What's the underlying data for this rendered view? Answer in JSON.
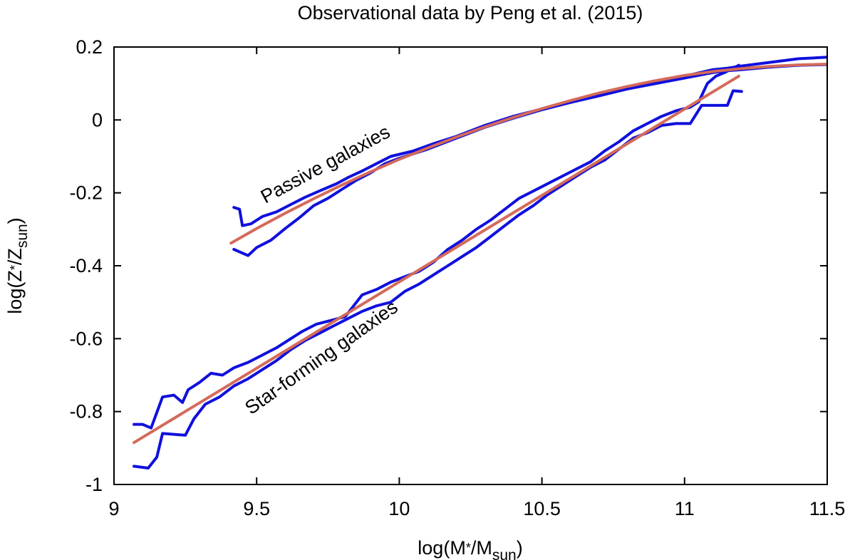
{
  "chart_data": {
    "type": "line",
    "title": "Observational data by Peng et al. (2015)",
    "xlabel": {
      "main": "log(M",
      "star": "*",
      "mid": "/M",
      "sub": "sun",
      "end": ")"
    },
    "ylabel": {
      "main": "log(Z",
      "star": "*",
      "mid": "/Z",
      "sub": "sun",
      "end": ")"
    },
    "xlim": [
      9,
      11.5
    ],
    "ylim": [
      -1,
      0.2
    ],
    "x_ticks": [
      9,
      9.5,
      10,
      10.5,
      11,
      11.5
    ],
    "x_tick_labels": [
      "9",
      "9.5",
      "10",
      "10.5",
      "11",
      "11.5"
    ],
    "y_ticks": [
      -1,
      -0.8,
      -0.6,
      -0.4,
      -0.2,
      0,
      0.2
    ],
    "y_tick_labels": [
      "-1",
      "-0.8",
      "-0.6",
      "-0.4",
      "-0.2",
      "0",
      "0.2"
    ],
    "grid": false,
    "colors": {
      "data": "#1010dd",
      "fit": "#d46a5a",
      "axis": "#000000"
    },
    "annotations": [
      {
        "text": "Passive galaxies",
        "x": 9.53,
        "y": -0.23,
        "angle_data_slope": 0.42
      },
      {
        "text": "Star-forming galaxies",
        "x": 9.48,
        "y": -0.81,
        "angle_data_slope": 0.555
      }
    ],
    "series": [
      {
        "role": "passive-upper",
        "style": "data",
        "x": [
          9.42,
          9.44,
          9.45,
          9.48,
          9.52,
          9.57,
          9.62,
          9.67,
          9.72,
          9.78,
          9.82,
          9.87,
          9.92,
          9.97,
          10.05,
          10.12,
          10.2,
          10.3,
          10.4,
          10.5,
          10.6,
          10.7,
          10.8,
          10.9,
          11.0,
          11.1,
          11.15,
          11.2,
          11.3,
          11.4,
          11.5
        ],
        "y": [
          -0.24,
          -0.245,
          -0.29,
          -0.285,
          -0.265,
          -0.252,
          -0.232,
          -0.212,
          -0.195,
          -0.175,
          -0.158,
          -0.14,
          -0.12,
          -0.1,
          -0.085,
          -0.065,
          -0.045,
          -0.015,
          0.01,
          0.03,
          0.05,
          0.07,
          0.09,
          0.105,
          0.12,
          0.138,
          0.142,
          0.148,
          0.158,
          0.168,
          0.172
        ]
      },
      {
        "role": "passive-lower",
        "style": "data",
        "x": [
          9.42,
          9.47,
          9.5,
          9.55,
          9.6,
          9.65,
          9.7,
          9.75,
          9.8,
          9.85,
          9.9,
          9.95,
          10.0,
          10.1,
          10.2,
          10.3,
          10.4,
          10.5,
          10.6,
          10.7,
          10.8,
          10.9,
          11.0,
          11.1,
          11.15,
          11.2,
          11.3,
          11.4,
          11.5
        ],
        "y": [
          -0.355,
          -0.372,
          -0.35,
          -0.33,
          -0.298,
          -0.268,
          -0.235,
          -0.215,
          -0.19,
          -0.165,
          -0.145,
          -0.12,
          -0.105,
          -0.08,
          -0.05,
          -0.02,
          0.005,
          0.028,
          0.048,
          0.066,
          0.085,
          0.1,
          0.115,
          0.13,
          0.135,
          0.138,
          0.145,
          0.15,
          0.152
        ]
      },
      {
        "role": "star-forming-upper",
        "style": "data",
        "x": [
          9.07,
          9.1,
          9.13,
          9.17,
          9.21,
          9.24,
          9.26,
          9.3,
          9.34,
          9.38,
          9.42,
          9.47,
          9.52,
          9.57,
          9.62,
          9.66,
          9.71,
          9.76,
          9.81,
          9.84,
          9.87,
          9.92,
          9.97,
          10.02,
          10.07,
          10.12,
          10.17,
          10.22,
          10.27,
          10.32,
          10.37,
          10.42,
          10.47,
          10.52,
          10.57,
          10.62,
          10.67,
          10.72,
          10.77,
          10.82,
          10.87,
          10.92,
          10.97,
          11.02,
          11.05,
          11.08,
          11.11,
          11.14,
          11.19
        ],
        "y": [
          -0.835,
          -0.835,
          -0.845,
          -0.76,
          -0.755,
          -0.775,
          -0.74,
          -0.72,
          -0.695,
          -0.7,
          -0.68,
          -0.665,
          -0.645,
          -0.625,
          -0.6,
          -0.58,
          -0.56,
          -0.55,
          -0.54,
          -0.51,
          -0.48,
          -0.465,
          -0.445,
          -0.43,
          -0.415,
          -0.39,
          -0.355,
          -0.33,
          -0.3,
          -0.275,
          -0.245,
          -0.215,
          -0.195,
          -0.175,
          -0.155,
          -0.135,
          -0.115,
          -0.085,
          -0.06,
          -0.03,
          -0.01,
          0.01,
          0.025,
          0.035,
          0.05,
          0.1,
          0.12,
          0.13,
          0.15
        ]
      },
      {
        "role": "star-forming-lower",
        "style": "data",
        "x": [
          9.07,
          9.12,
          9.15,
          9.17,
          9.25,
          9.28,
          9.32,
          9.37,
          9.42,
          9.47,
          9.52,
          9.57,
          9.62,
          9.67,
          9.72,
          9.77,
          9.82,
          9.87,
          9.92,
          9.97,
          10.02,
          10.07,
          10.12,
          10.17,
          10.22,
          10.27,
          10.32,
          10.37,
          10.42,
          10.47,
          10.52,
          10.57,
          10.62,
          10.67,
          10.72,
          10.77,
          10.82,
          10.87,
          10.92,
          10.97,
          11.02,
          11.06,
          11.1,
          11.12,
          11.15,
          11.17,
          11.2
        ],
        "y": [
          -0.95,
          -0.955,
          -0.925,
          -0.86,
          -0.865,
          -0.82,
          -0.78,
          -0.76,
          -0.73,
          -0.71,
          -0.685,
          -0.66,
          -0.63,
          -0.605,
          -0.585,
          -0.565,
          -0.545,
          -0.525,
          -0.51,
          -0.5,
          -0.47,
          -0.45,
          -0.425,
          -0.4,
          -0.375,
          -0.35,
          -0.32,
          -0.29,
          -0.26,
          -0.235,
          -0.205,
          -0.18,
          -0.155,
          -0.13,
          -0.11,
          -0.08,
          -0.05,
          -0.035,
          -0.015,
          -0.01,
          -0.01,
          0.04,
          0.04,
          0.04,
          0.04,
          0.08,
          0.078
        ]
      },
      {
        "role": "passive-fit",
        "style": "fit",
        "x": [
          9.41,
          9.5,
          9.6,
          9.7,
          9.8,
          9.9,
          10.0,
          10.1,
          10.2,
          10.3,
          10.4,
          10.5,
          10.6,
          10.7,
          10.8,
          10.9,
          11.0,
          11.1,
          11.2,
          11.3,
          11.4,
          11.5
        ],
        "y": [
          -0.338,
          -0.298,
          -0.256,
          -0.216,
          -0.178,
          -0.142,
          -0.108,
          -0.077,
          -0.047,
          -0.019,
          0.007,
          0.031,
          0.053,
          0.074,
          0.092,
          0.108,
          0.122,
          0.133,
          0.141,
          0.147,
          0.151,
          0.153
        ]
      },
      {
        "role": "star-forming-fit",
        "style": "fit",
        "x": [
          9.07,
          11.19
        ],
        "y": [
          -0.885,
          0.12
        ]
      }
    ]
  }
}
